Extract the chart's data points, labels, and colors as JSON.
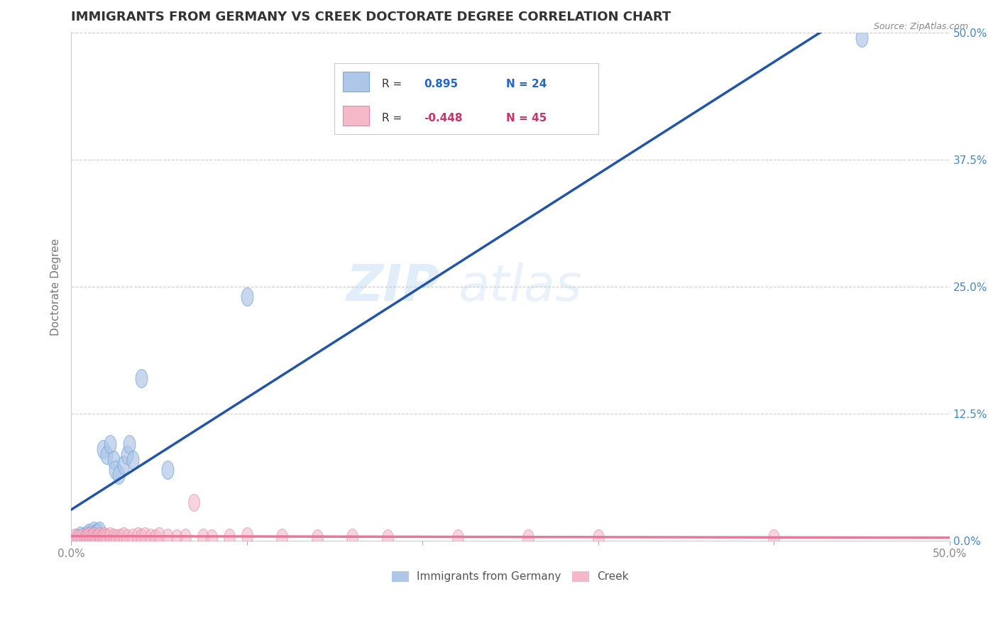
{
  "title": "IMMIGRANTS FROM GERMANY VS CREEK DOCTORATE DEGREE CORRELATION CHART",
  "source": "Source: ZipAtlas.com",
  "xlabel": "",
  "ylabel": "Doctorate Degree",
  "xlim": [
    0.0,
    0.5
  ],
  "ylim": [
    0.0,
    0.5
  ],
  "xticks": [
    0.0,
    0.1,
    0.2,
    0.3,
    0.4,
    0.5
  ],
  "xtick_labels": [
    "0.0%",
    "",
    "",
    "",
    "",
    "50.0%"
  ],
  "ytick_labels": [
    "0.0%",
    "12.5%",
    "25.0%",
    "37.5%",
    "50.0%"
  ],
  "yticks": [
    0.0,
    0.125,
    0.25,
    0.375,
    0.5
  ],
  "grid_color": "#c8c8c8",
  "blue_color": "#aec6e8",
  "pink_color": "#f4b8c8",
  "blue_edge_color": "#7aa8d8",
  "pink_edge_color": "#e888a8",
  "blue_line_color": "#2255aa",
  "pink_line_color": "#e87898",
  "legend_R_blue": "R =  0.895",
  "legend_N_blue": "N = 24",
  "legend_R_pink": "R = -0.448",
  "legend_N_pink": "N = 45",
  "legend_text_color": "#333333",
  "legend_value_blue": "#2266cc",
  "legend_value_pink": "#cc3366",
  "blue_scatter_x": [
    0.003,
    0.005,
    0.007,
    0.009,
    0.01,
    0.011,
    0.013,
    0.014,
    0.015,
    0.016,
    0.018,
    0.02,
    0.022,
    0.024,
    0.025,
    0.027,
    0.03,
    0.032,
    0.033,
    0.035,
    0.04,
    0.055,
    0.1,
    0.45
  ],
  "blue_scatter_y": [
    0.003,
    0.005,
    0.004,
    0.006,
    0.008,
    0.006,
    0.01,
    0.008,
    0.009,
    0.01,
    0.09,
    0.085,
    0.095,
    0.08,
    0.07,
    0.065,
    0.075,
    0.085,
    0.095,
    0.08,
    0.16,
    0.07,
    0.24,
    0.495
  ],
  "pink_scatter_x": [
    0.002,
    0.004,
    0.006,
    0.008,
    0.009,
    0.01,
    0.011,
    0.012,
    0.013,
    0.014,
    0.015,
    0.016,
    0.017,
    0.018,
    0.019,
    0.02,
    0.022,
    0.024,
    0.026,
    0.028,
    0.03,
    0.032,
    0.035,
    0.038,
    0.04,
    0.042,
    0.045,
    0.048,
    0.05,
    0.055,
    0.06,
    0.065,
    0.07,
    0.075,
    0.08,
    0.09,
    0.1,
    0.12,
    0.14,
    0.16,
    0.18,
    0.22,
    0.26,
    0.3,
    0.4
  ],
  "pink_scatter_y": [
    0.004,
    0.003,
    0.004,
    0.003,
    0.004,
    0.005,
    0.003,
    0.004,
    0.005,
    0.003,
    0.004,
    0.005,
    0.003,
    0.004,
    0.005,
    0.004,
    0.005,
    0.004,
    0.003,
    0.004,
    0.005,
    0.003,
    0.004,
    0.005,
    0.004,
    0.005,
    0.004,
    0.003,
    0.005,
    0.004,
    0.003,
    0.004,
    0.038,
    0.004,
    0.003,
    0.004,
    0.005,
    0.004,
    0.003,
    0.004,
    0.003,
    0.003,
    0.003,
    0.003,
    0.003
  ],
  "background_color": "#ffffff",
  "title_color": "#333333",
  "title_fontsize": 13,
  "axis_label_color": "#777777",
  "ytick_color": "#4488cc",
  "xtick_color": "#888888"
}
